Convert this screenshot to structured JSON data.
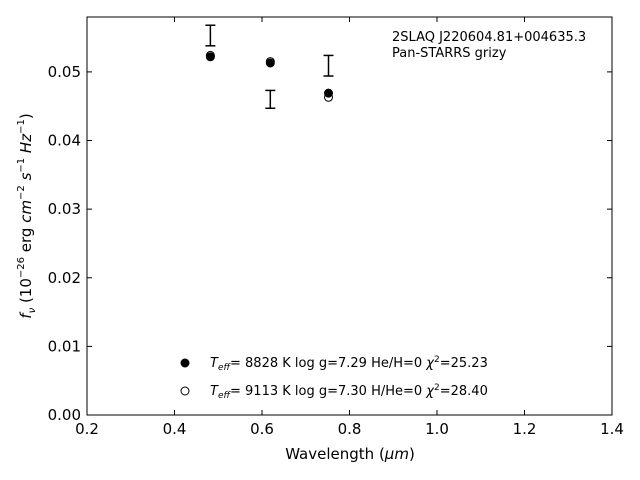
{
  "chart_data": {
    "type": "scatter",
    "xlabel_text": "Wavelength (",
    "xlabel_unit": "μm",
    "xlabel_close": ")",
    "ylabel_f": "f",
    "ylabel_sub": "ν",
    "ylabel_open": " (10",
    "ylabel_exp": "−26",
    "ylabel_erg": " erg ",
    "ylabel_cm": "cm",
    "ylabel_cm_exp": "−2",
    "ylabel_s": "s",
    "ylabel_s_exp": "−1",
    "ylabel_hz": "Hz",
    "ylabel_hz_exp": "−1",
    "ylabel_close": ")",
    "xlim": [
      0.2,
      1.4
    ],
    "ylim": [
      0.0,
      0.058
    ],
    "xticks": [
      0.2,
      0.4,
      0.6,
      0.8,
      1.0,
      1.2,
      1.4
    ],
    "xtick_labels": [
      "0.2",
      "0.4",
      "0.6",
      "0.8",
      "1.0",
      "1.2",
      "1.4"
    ],
    "yticks": [
      0.0,
      0.01,
      0.02,
      0.03,
      0.04,
      0.05
    ],
    "ytick_labels": [
      "0.00",
      "0.01",
      "0.02",
      "0.03",
      "0.04",
      "0.05"
    ],
    "grid": false,
    "annotation": [
      "2SLAQ J220604.81+004635.3",
      "Pan-STARRS grizy"
    ],
    "observed": {
      "x": [
        0.482,
        0.619,
        0.752
      ],
      "y": [
        0.0553,
        0.046,
        0.0509
      ],
      "yerr": [
        0.0015,
        0.0013,
        0.0015
      ]
    },
    "series": [
      {
        "marker": "filled-circle",
        "x": [
          0.482,
          0.619,
          0.752
        ],
        "y": [
          0.0522,
          0.0513,
          0.0469
        ],
        "legend": {
          "teff_sym": "T",
          "teff_sub": "eff",
          "teff_eq": "=  8828 K  log g=7.29  He/H=0  ",
          "chi_sym": "χ",
          "chi_exp": "2",
          "chi_val": "=25.23"
        }
      },
      {
        "marker": "open-circle",
        "x": [
          0.482,
          0.619,
          0.752
        ],
        "y": [
          0.0524,
          0.0515,
          0.0463
        ],
        "legend": {
          "teff_sym": "T",
          "teff_sub": "eff",
          "teff_eq": "=  9113 K  log g=7.30  H/He=0  ",
          "chi_sym": "χ",
          "chi_exp": "2",
          "chi_val": "=28.40"
        }
      }
    ]
  }
}
